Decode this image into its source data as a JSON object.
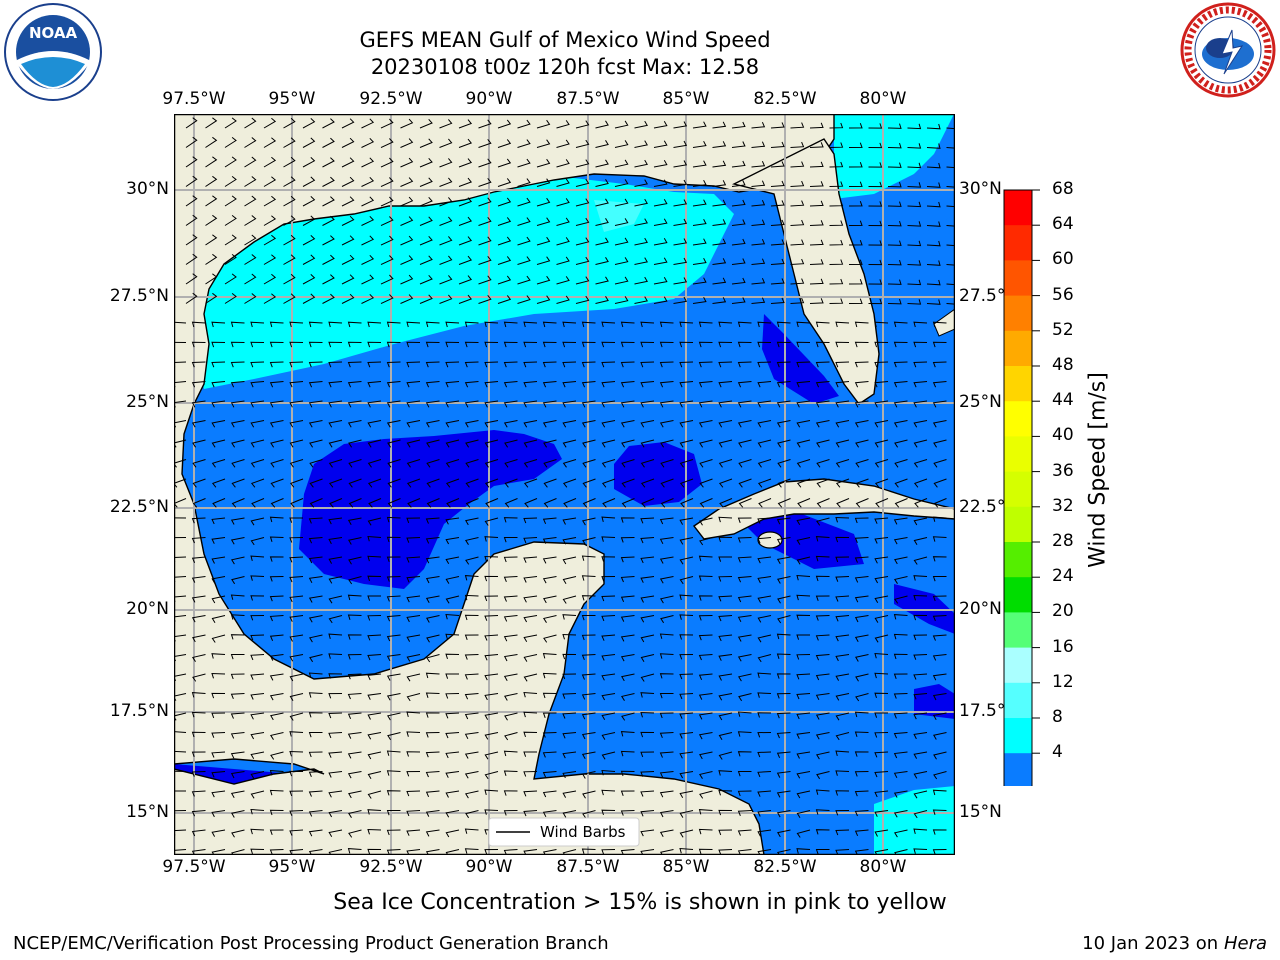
{
  "title": {
    "line1": "GEFS MEAN Gulf of Mexico Wind Speed",
    "line2": "20230108 t00z 120h fcst   Max: 12.58"
  },
  "logos": {
    "noaa": {
      "text": "NOAA",
      "ring_text": "NATIONAL OCEANIC AND ATMOSPHERIC ADMINISTRATION · U.S. DEPARTMENT OF COMMERCE"
    },
    "nws": {
      "ring_text": "NATIONAL WEATHER SERVICE"
    }
  },
  "map": {
    "lon_ticks": [
      "97.5°W",
      "95°W",
      "92.5°W",
      "90°W",
      "87.5°W",
      "85°W",
      "82.5°W",
      "80°W"
    ],
    "lat_ticks": [
      "30°N",
      "27.5°N",
      "25°N",
      "22.5°N",
      "20°N",
      "17.5°N",
      "15°N"
    ],
    "legend_label": "Wind Barbs",
    "colors": {
      "land": "#efeedc",
      "ocean_4_8": "#0a7cff",
      "ocean_0_4": "#0000ee",
      "ocean_8_12": "#00ffff",
      "ocean_12_16": "#44ffff",
      "coast": "#000000",
      "grid": "#b0b0b0"
    }
  },
  "colorbar": {
    "label": "Wind Speed [m/s]",
    "ticks": [
      "68",
      "64",
      "60",
      "56",
      "52",
      "48",
      "44",
      "40",
      "36",
      "32",
      "28",
      "24",
      "20",
      "16",
      "12",
      "8",
      "4"
    ],
    "colors": [
      "#ff0000",
      "#ff2a00",
      "#ff5500",
      "#ff8000",
      "#ffaa00",
      "#ffd500",
      "#ffff00",
      "#eaff00",
      "#d5ff00",
      "#bfff00",
      "#55ee00",
      "#00dd00",
      "#55ff77",
      "#aaffff",
      "#55ffff",
      "#00ffff",
      "#0a7cff"
    ],
    "under_color": "#0000ee"
  },
  "notes": {
    "sea_ice": "Sea Ice Concentration > 15% is shown in pink to yellow"
  },
  "footer": {
    "left": "NCEP/EMC/Verification Post Processing Product Generation Branch",
    "right_date": "10 Jan 2023 on ",
    "right_machine": "Hera"
  }
}
